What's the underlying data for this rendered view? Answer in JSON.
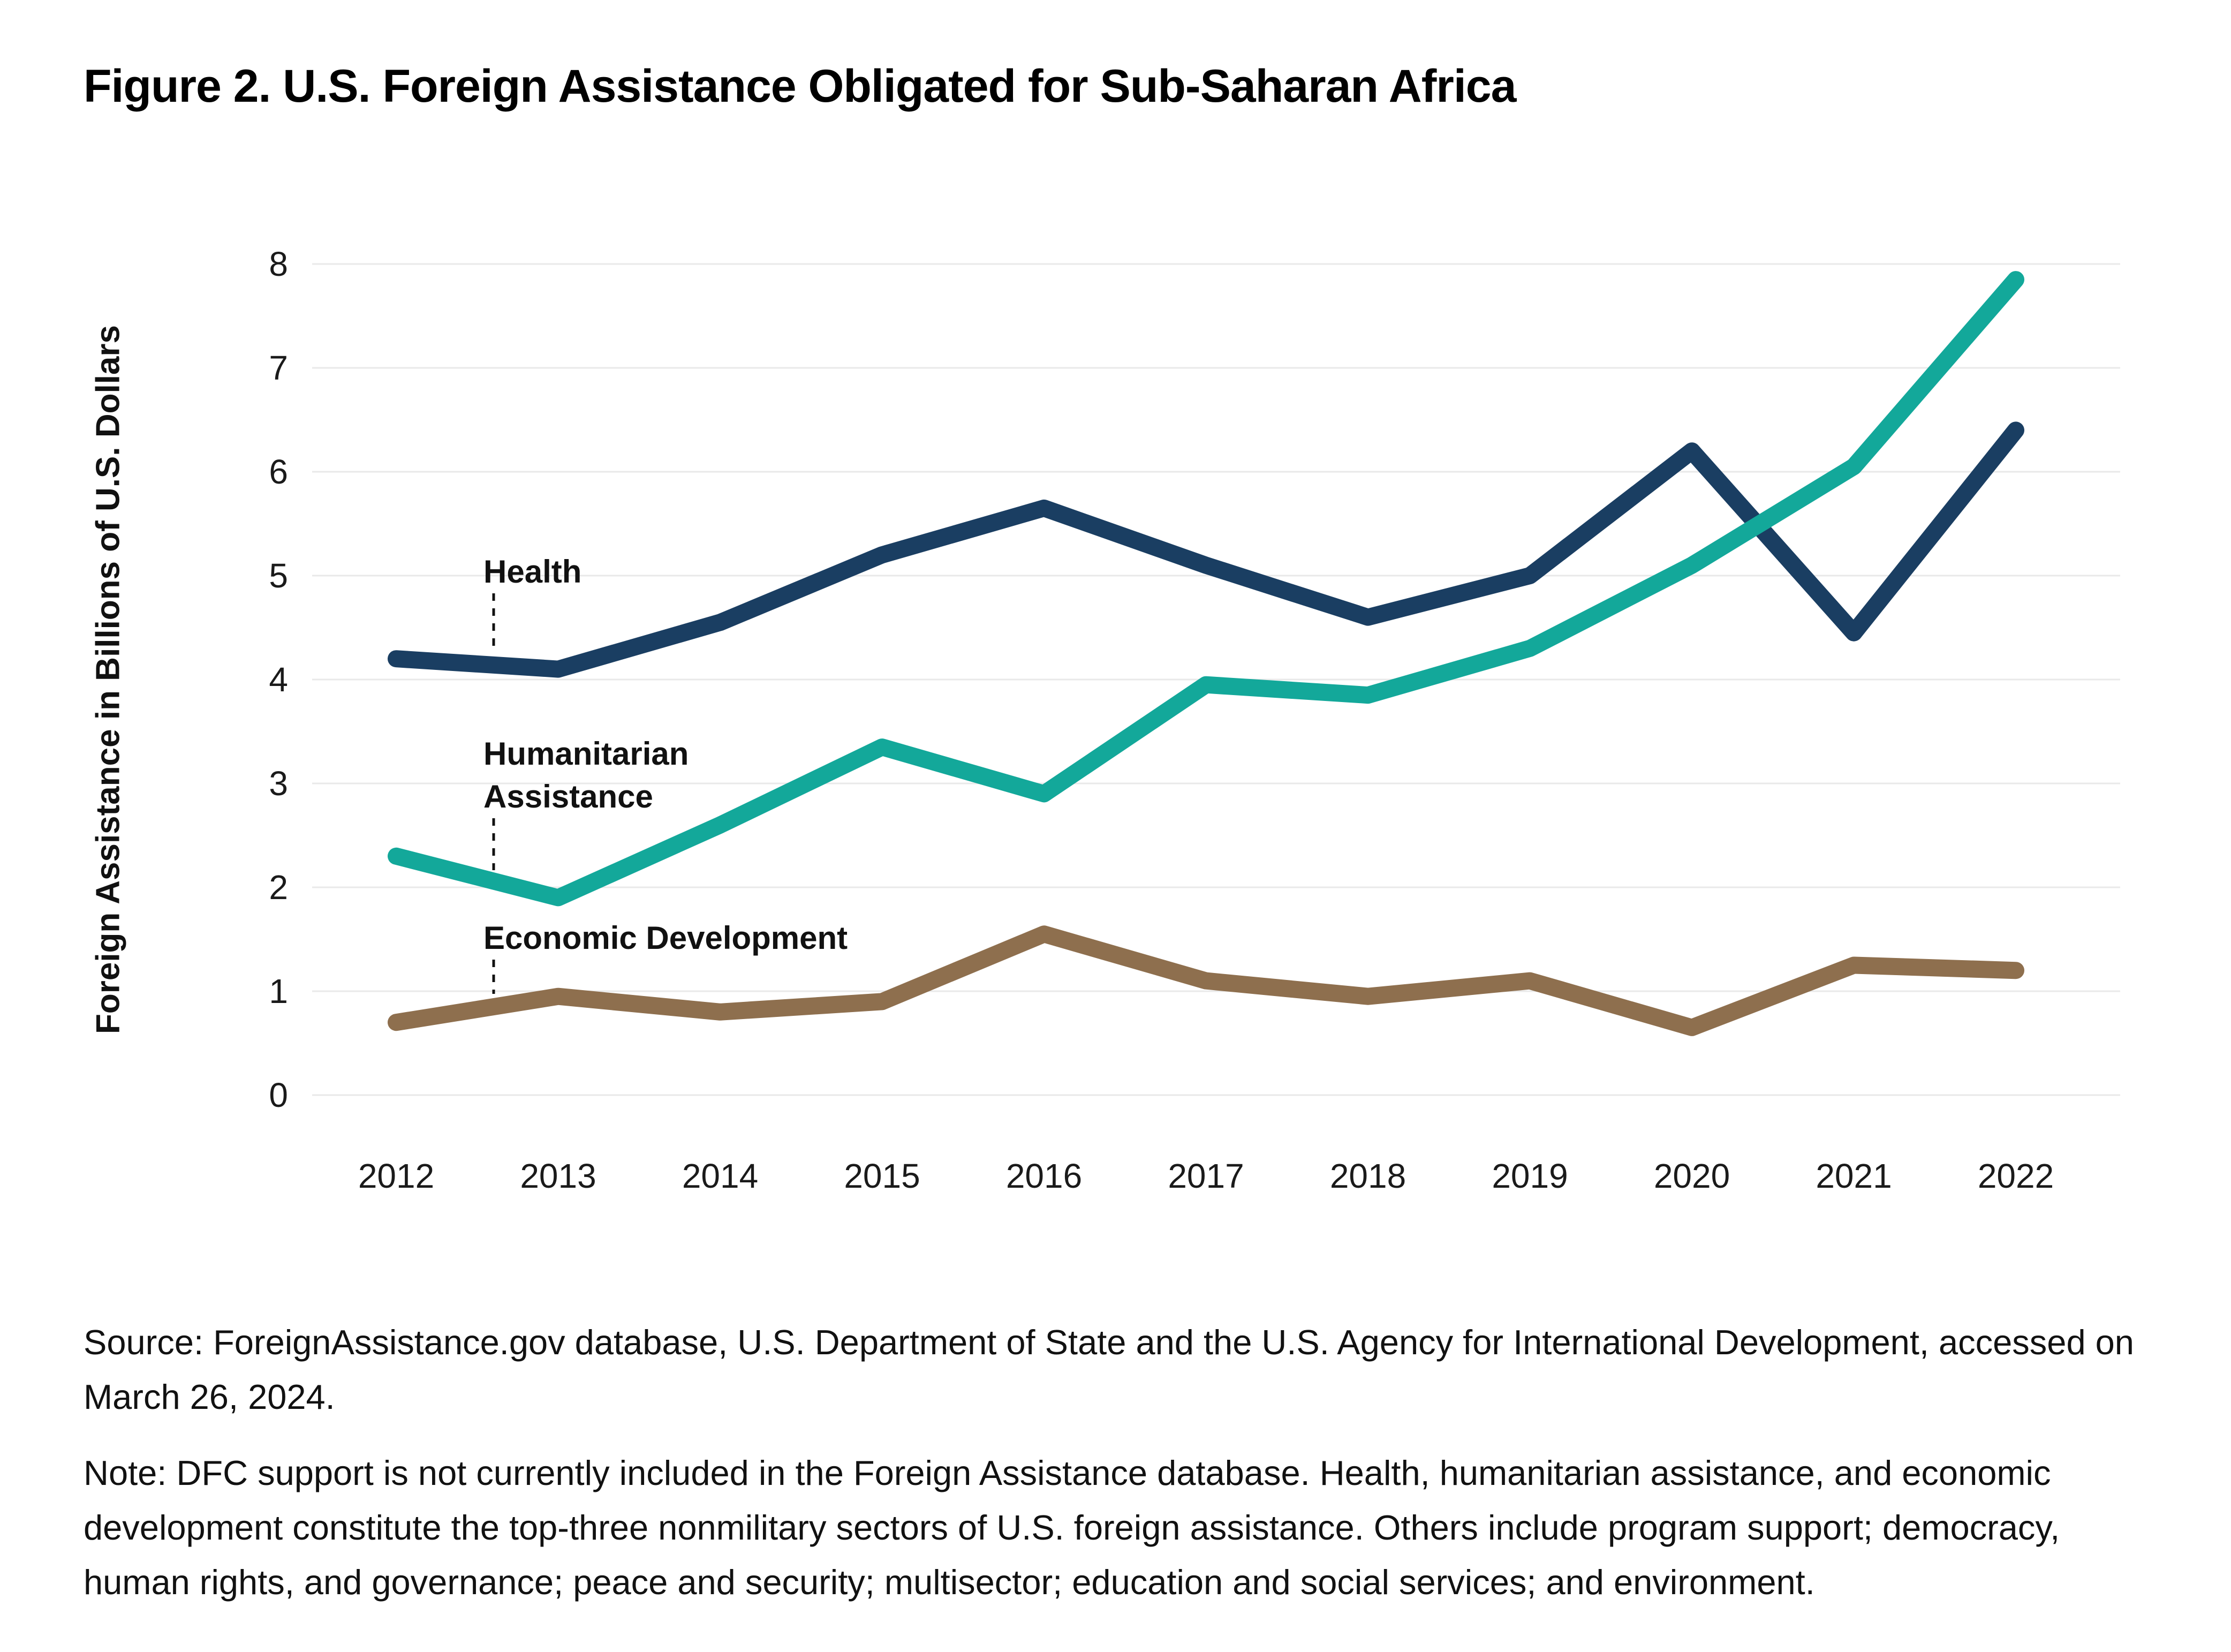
{
  "title": "Figure 2. U.S. Foreign Assistance Obligated for Sub-Saharan Africa",
  "y_axis": {
    "label": "Foreign Assistance in Billions of U.S. Dollars",
    "ticks": [
      0,
      1,
      2,
      3,
      4,
      5,
      6,
      7,
      8
    ]
  },
  "x_axis": {
    "ticks": [
      "2012",
      "2013",
      "2014",
      "2015",
      "2016",
      "2017",
      "2018",
      "2019",
      "2020",
      "2021",
      "2022"
    ]
  },
  "annotations": {
    "health": {
      "label": "Health"
    },
    "humanitarian": {
      "label": "Humanitarian Assistance"
    },
    "economic": {
      "label": "Economic Development"
    }
  },
  "source": "Source: ForeignAssistance.gov database, U.S. Department of State and the U.S. Agency for International Development, accessed on March 26, 2024.",
  "note": "Note: DFC support is not currently included in the Foreign Assistance database. Health, humanitarian assistance, and economic development constitute the top-three nonmilitary sectors of U.S. foreign assistance. Others include program support; democracy, human rights, and governance; peace and security; multisector; education and social services; and environment.",
  "colors": {
    "health": "#1a3e62",
    "humanitarian": "#13a89a",
    "economic": "#8e6f4e",
    "gridline": "#e9e9e9",
    "leader": "#111111",
    "text": "#111111"
  },
  "chart_data": {
    "type": "line",
    "title": "Figure 2. U.S. Foreign Assistance Obligated for Sub-Saharan Africa",
    "xlabel": "",
    "ylabel": "Foreign Assistance in Billions of U.S. Dollars",
    "x": [
      2012,
      2013,
      2014,
      2015,
      2016,
      2017,
      2018,
      2019,
      2020,
      2021,
      2022
    ],
    "ylim": [
      0,
      8
    ],
    "grid": true,
    "legend_position": "inline-annotations",
    "units": "billions of U.S. dollars",
    "series": [
      {
        "name": "Health",
        "color": "#1a3e62",
        "values": [
          4.2,
          4.1,
          4.55,
          5.2,
          5.65,
          5.1,
          4.6,
          5.0,
          6.2,
          4.45,
          6.4
        ]
      },
      {
        "name": "Humanitarian Assistance",
        "color": "#13a89a",
        "values": [
          2.3,
          1.9,
          2.6,
          3.35,
          2.9,
          3.95,
          3.85,
          4.3,
          5.1,
          6.05,
          7.85
        ]
      },
      {
        "name": "Economic Development",
        "color": "#8e6f4e",
        "values": [
          0.7,
          0.95,
          0.8,
          0.9,
          1.55,
          1.1,
          0.95,
          1.1,
          0.65,
          1.25,
          1.2
        ]
      }
    ]
  }
}
